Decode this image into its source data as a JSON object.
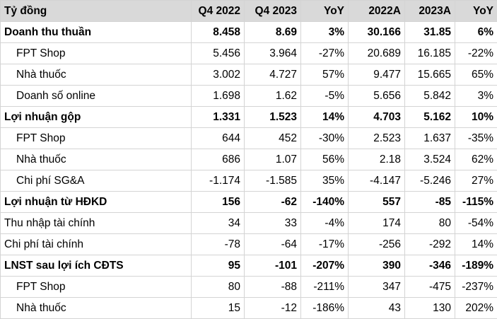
{
  "table": {
    "header": [
      "Tỷ đồng",
      "Q4 2022",
      "Q4 2023",
      "YoY",
      "2022A",
      "2023A",
      "YoY"
    ],
    "rows": [
      [
        "Doanh thu thuần",
        "8.458",
        "8.69",
        "3%",
        "30.166",
        "31.85",
        "6%"
      ],
      [
        "FPT Shop",
        "5.456",
        "3.964",
        "-27%",
        "20.689",
        "16.185",
        "-22%"
      ],
      [
        "Nhà thuốc",
        "3.002",
        "4.727",
        "57%",
        "9.477",
        "15.665",
        "65%"
      ],
      [
        "Doanh số online",
        "1.698",
        "1.62",
        "-5%",
        "5.656",
        "5.842",
        "3%"
      ],
      [
        "Lợi nhuận gộp",
        "1.331",
        "1.523",
        "14%",
        "4.703",
        "5.162",
        "10%"
      ],
      [
        "FPT Shop",
        "644",
        "452",
        "-30%",
        "2.523",
        "1.637",
        "-35%"
      ],
      [
        "Nhà thuốc",
        "686",
        "1.07",
        "56%",
        "2.18",
        "3.524",
        "62%"
      ],
      [
        "Chi phí SG&A",
        "-1.174",
        "-1.585",
        "35%",
        "-4.147",
        "-5.246",
        "27%"
      ],
      [
        "Lợi nhuận từ HĐKD",
        "156",
        "-62",
        "-140%",
        "557",
        "-85",
        "-115%"
      ],
      [
        "Thu nhập tài chính",
        "34",
        "33",
        "-4%",
        "174",
        "80",
        "-54%"
      ],
      [
        "Chi phí tài chính",
        "-78",
        "-64",
        "-17%",
        "-256",
        "-292",
        "14%"
      ],
      [
        "LNST sau lợi ích CĐTS",
        "95",
        "-101",
        "-207%",
        "390",
        "-346",
        "-189%"
      ],
      [
        "FPT Shop",
        "80",
        "-88",
        "-211%",
        "347",
        "-475",
        "-237%"
      ],
      [
        "Nhà thuốc",
        "15",
        "-12",
        "-186%",
        "43",
        "130",
        "202%"
      ]
    ]
  }
}
